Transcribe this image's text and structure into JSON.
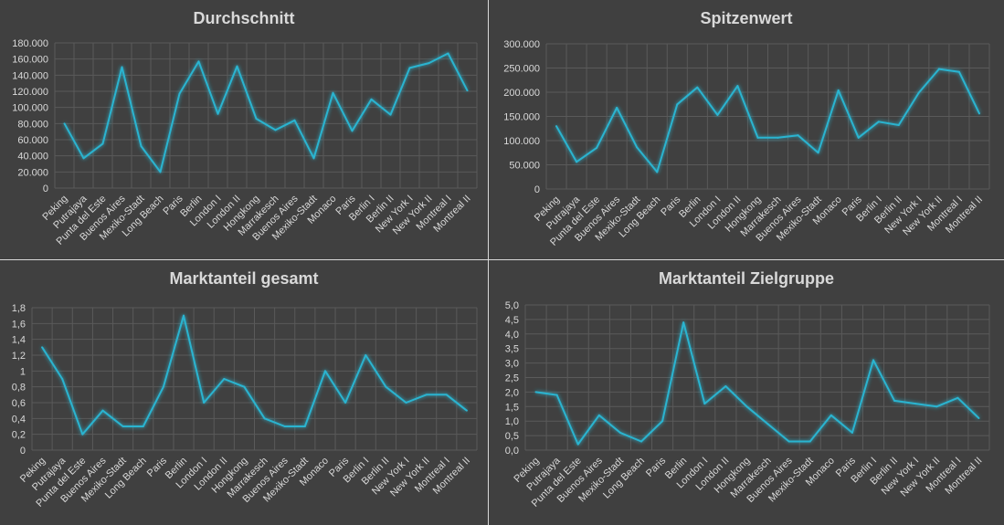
{
  "chart_data": [
    {
      "type": "line",
      "title": "Durchschnitt",
      "categories": [
        "Peking",
        "Putrajaya",
        "Punta del Este",
        "Buenos Aires",
        "Mexiko-Stadt",
        "Long Beach",
        "Paris",
        "Berlin",
        "London I",
        "London II",
        "Hongkong",
        "Marrakesch",
        "Buenos Aires",
        "Mexiko-Stadt",
        "Monaco",
        "Paris",
        "Berlin I",
        "Berlin II",
        "New York I",
        "New York II",
        "Montreal I",
        "Montreal II"
      ],
      "values": [
        80000,
        37000,
        55000,
        150000,
        52000,
        20000,
        117000,
        157000,
        92000,
        151000,
        86000,
        72000,
        84000,
        37000,
        118000,
        71000,
        110000,
        91000,
        149000,
        155000,
        167000,
        121000
      ],
      "ylim": [
        0,
        180000
      ],
      "yticks": [
        "0",
        "20.000",
        "40.000",
        "60.000",
        "80.000",
        "100.000",
        "120.000",
        "140.000",
        "160.000",
        "180.000"
      ],
      "line_color": "#2bb4d0",
      "grid": true
    },
    {
      "type": "line",
      "title": "Spitzenwert",
      "categories": [
        "Peking",
        "Putrajaya",
        "Punta del Este",
        "Buenos Aires",
        "Mexiko-Stadt",
        "Long Beach",
        "Paris",
        "Berlin",
        "London I",
        "London II",
        "Hongkong",
        "Marrakesch",
        "Buenos Aires",
        "Mexiko-Stadt",
        "Monaco",
        "Paris",
        "Berlin I",
        "Berlin II",
        "New York I",
        "New York II",
        "Montreal I",
        "Montreal II"
      ],
      "values": [
        130000,
        56000,
        85000,
        168000,
        86000,
        35000,
        175000,
        210000,
        153000,
        213000,
        106000,
        106000,
        111000,
        75000,
        204000,
        106000,
        139000,
        132000,
        199000,
        248000,
        242000,
        156000
      ],
      "ylim": [
        0,
        300000
      ],
      "yticks": [
        "0",
        "50.000",
        "100.000",
        "150.000",
        "200.000",
        "250.000",
        "300.000"
      ],
      "line_color": "#2bb4d0",
      "grid": true
    },
    {
      "type": "line",
      "title": "Marktanteil gesamt",
      "categories": [
        "Peking",
        "Putrajaya",
        "Punta del Este",
        "Buenos Aires",
        "Mexiko-Stadt",
        "Long Beach",
        "Paris",
        "Berlin",
        "London I",
        "London II",
        "Hongkong",
        "Marrakesch",
        "Buenos Aires",
        "Mexiko-Stadt",
        "Monaco",
        "Paris",
        "Berlin I",
        "Berlin II",
        "New York I",
        "New York II",
        "Montreal I",
        "Montreal II"
      ],
      "values": [
        1.3,
        0.9,
        0.2,
        0.5,
        0.3,
        0.3,
        0.8,
        1.7,
        0.6,
        0.9,
        0.8,
        0.4,
        0.3,
        0.3,
        1.0,
        0.6,
        1.2,
        0.8,
        0.6,
        0.7,
        0.7,
        0.5
      ],
      "ylim": [
        0,
        1.8
      ],
      "yticks": [
        "0",
        "0,2",
        "0,4",
        "0,6",
        "0,8",
        "1",
        "1,2",
        "1,4",
        "1,6",
        "1,8"
      ],
      "line_color": "#2bb4d0",
      "grid": true
    },
    {
      "type": "line",
      "title": "Marktanteil Zielgruppe",
      "categories": [
        "Peking",
        "Putrajaya",
        "Punta del Este",
        "Buenos Aires",
        "Mexiko-Stadt",
        "Long Beach",
        "Paris",
        "Berlin",
        "London I",
        "London II",
        "Hongkong",
        "Marrakesch",
        "Buenos Aires",
        "Mexiko-Stadt",
        "Monaco",
        "Paris",
        "Berlin I",
        "Berlin II",
        "New York I",
        "New York II",
        "Montreal I",
        "Montreal II"
      ],
      "values": [
        2.0,
        1.9,
        0.2,
        1.2,
        0.6,
        0.3,
        1.0,
        4.4,
        1.6,
        2.2,
        1.5,
        0.9,
        0.3,
        0.3,
        1.2,
        0.6,
        3.1,
        1.7,
        1.6,
        1.5,
        1.8,
        1.1
      ],
      "ylim": [
        0,
        5.0
      ],
      "yticks": [
        "0,0",
        "0,5",
        "1,0",
        "1,5",
        "2,0",
        "2,5",
        "3,0",
        "3,5",
        "4,0",
        "4,5",
        "5,0"
      ],
      "line_color": "#2bb4d0",
      "grid": true
    }
  ]
}
